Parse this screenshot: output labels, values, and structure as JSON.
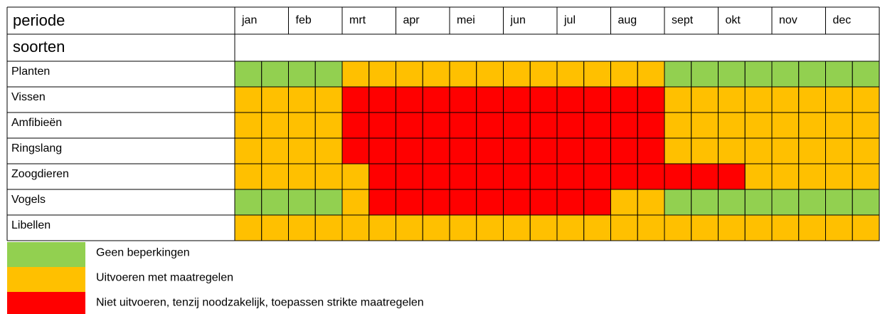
{
  "header": {
    "title": "periode",
    "subtitle": "soorten",
    "months": [
      "jan",
      "feb",
      "mrt",
      "apr",
      "mei",
      "jun",
      "jul",
      "aug",
      "sept",
      "okt",
      "nov",
      "dec"
    ]
  },
  "legend": [
    {
      "color": "#92d050",
      "label": "Geen beperkingen"
    },
    {
      "color": "#ffc000",
      "label": "Uitvoeren met maatregelen"
    },
    {
      "color": "#ff0000",
      "label": "Niet uitvoeren, tenzij noodzakelijk, toepassen strikte maatregelen"
    }
  ],
  "rows": [
    {
      "label": "Planten",
      "cells": [
        0,
        0,
        0,
        0,
        1,
        1,
        1,
        1,
        1,
        1,
        1,
        1,
        1,
        1,
        1,
        1,
        0,
        0,
        0,
        0,
        0,
        0,
        0,
        0
      ]
    },
    {
      "label": "Vissen",
      "cells": [
        1,
        1,
        1,
        1,
        2,
        2,
        2,
        2,
        2,
        2,
        2,
        2,
        2,
        2,
        2,
        2,
        1,
        1,
        1,
        1,
        1,
        1,
        1,
        1
      ]
    },
    {
      "label": "Amfibieën",
      "cells": [
        1,
        1,
        1,
        1,
        2,
        2,
        2,
        2,
        2,
        2,
        2,
        2,
        2,
        2,
        2,
        2,
        1,
        1,
        1,
        1,
        1,
        1,
        1,
        1
      ]
    },
    {
      "label": "Ringslang",
      "cells": [
        1,
        1,
        1,
        1,
        2,
        2,
        2,
        2,
        2,
        2,
        2,
        2,
        2,
        2,
        2,
        2,
        1,
        1,
        1,
        1,
        1,
        1,
        1,
        1
      ]
    },
    {
      "label": "Zoogdieren",
      "cells": [
        1,
        1,
        1,
        1,
        1,
        2,
        2,
        2,
        2,
        2,
        2,
        2,
        2,
        2,
        2,
        2,
        2,
        2,
        2,
        1,
        1,
        1,
        1,
        1
      ]
    },
    {
      "label": "Vogels",
      "cells": [
        0,
        0,
        0,
        0,
        1,
        2,
        2,
        2,
        2,
        2,
        2,
        2,
        2,
        2,
        1,
        1,
        0,
        0,
        0,
        0,
        0,
        0,
        0,
        0
      ]
    },
    {
      "label": "Libellen",
      "cells": [
        1,
        1,
        1,
        1,
        1,
        1,
        1,
        1,
        1,
        1,
        1,
        1,
        1,
        1,
        1,
        1,
        1,
        1,
        1,
        1,
        1,
        1,
        1,
        1
      ]
    }
  ]
}
